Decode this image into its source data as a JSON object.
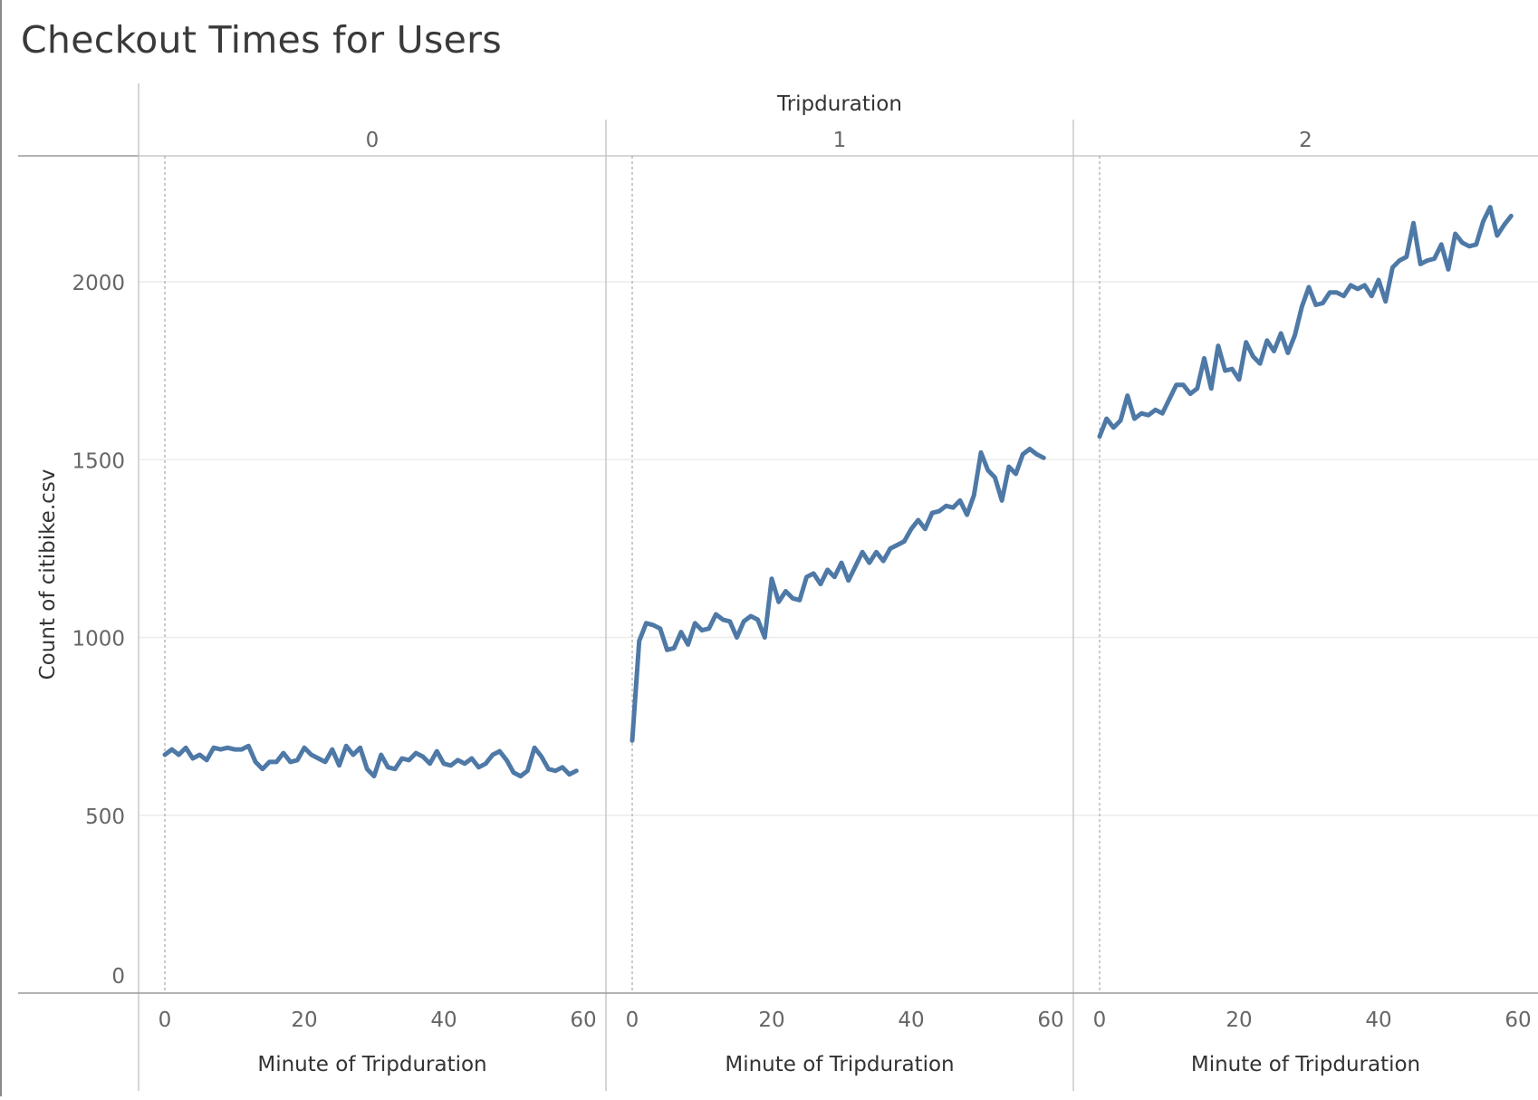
{
  "title": "Checkout Times for Users",
  "chart_data": {
    "type": "line",
    "title": "Checkout Times for Users",
    "column_header": "Tripduration",
    "xlabel": "Minute of Tripduration",
    "ylabel": "Count of citibike.csv",
    "ylim": [
      0,
      2300
    ],
    "yticks": [
      0,
      500,
      1000,
      1500,
      2000
    ],
    "xlim": [
      -4,
      63
    ],
    "xticks": [
      0,
      20,
      40,
      60
    ],
    "grid": true,
    "line_color": "#4e79a7",
    "panels": [
      {
        "label": "0",
        "x": [
          0,
          1,
          2,
          3,
          4,
          5,
          6,
          7,
          8,
          9,
          10,
          11,
          12,
          13,
          14,
          15,
          16,
          17,
          18,
          19,
          20,
          21,
          22,
          23,
          24,
          25,
          26,
          27,
          28,
          29,
          30,
          31,
          32,
          33,
          34,
          35,
          36,
          37,
          38,
          39,
          40,
          41,
          42,
          43,
          44,
          45,
          46,
          47,
          48,
          49,
          50,
          51,
          52,
          53,
          54,
          55,
          56,
          57,
          58,
          59
        ],
        "values": [
          670,
          685,
          670,
          690,
          660,
          670,
          655,
          690,
          685,
          690,
          685,
          685,
          695,
          650,
          630,
          650,
          650,
          675,
          650,
          655,
          690,
          670,
          660,
          650,
          685,
          640,
          695,
          670,
          690,
          630,
          610,
          670,
          635,
          630,
          660,
          655,
          675,
          665,
          645,
          680,
          645,
          640,
          655,
          645,
          660,
          635,
          645,
          670,
          680,
          655,
          620,
          610,
          625,
          690,
          665,
          630,
          625,
          635,
          615,
          625
        ]
      },
      {
        "label": "1",
        "x": [
          0,
          1,
          2,
          3,
          4,
          5,
          6,
          7,
          8,
          9,
          10,
          11,
          12,
          13,
          14,
          15,
          16,
          17,
          18,
          19,
          20,
          21,
          22,
          23,
          24,
          25,
          26,
          27,
          28,
          29,
          30,
          31,
          32,
          33,
          34,
          35,
          36,
          37,
          38,
          39,
          40,
          41,
          42,
          43,
          44,
          45,
          46,
          47,
          48,
          49,
          50,
          51,
          52,
          53,
          54,
          55,
          56,
          57,
          58,
          59
        ],
        "values": [
          710,
          990,
          1040,
          1035,
          1025,
          965,
          970,
          1015,
          980,
          1040,
          1020,
          1025,
          1065,
          1050,
          1045,
          1000,
          1045,
          1060,
          1050,
          1000,
          1165,
          1100,
          1130,
          1110,
          1105,
          1170,
          1180,
          1150,
          1190,
          1170,
          1210,
          1160,
          1200,
          1240,
          1210,
          1240,
          1215,
          1250,
          1260,
          1270,
          1305,
          1330,
          1305,
          1350,
          1355,
          1370,
          1365,
          1385,
          1345,
          1400,
          1520,
          1470,
          1450,
          1385,
          1480,
          1460,
          1515,
          1530,
          1515,
          1505
        ]
      },
      {
        "label": "2",
        "x": [
          0,
          1,
          2,
          3,
          4,
          5,
          6,
          7,
          8,
          9,
          10,
          11,
          12,
          13,
          14,
          15,
          16,
          17,
          18,
          19,
          20,
          21,
          22,
          23,
          24,
          25,
          26,
          27,
          28,
          29,
          30,
          31,
          32,
          33,
          34,
          35,
          36,
          37,
          38,
          39,
          40,
          41,
          42,
          43,
          44,
          45,
          46,
          47,
          48,
          49,
          50,
          51,
          52,
          53,
          54,
          55,
          56,
          57,
          58,
          59
        ],
        "values": [
          1565,
          1615,
          1590,
          1610,
          1680,
          1615,
          1630,
          1625,
          1640,
          1630,
          1670,
          1710,
          1710,
          1685,
          1700,
          1785,
          1700,
          1820,
          1750,
          1755,
          1725,
          1830,
          1790,
          1770,
          1835,
          1805,
          1855,
          1800,
          1850,
          1930,
          1985,
          1935,
          1940,
          1970,
          1970,
          1960,
          1990,
          1980,
          1990,
          1960,
          2005,
          1945,
          2040,
          2060,
          2070,
          2165,
          2050,
          2060,
          2065,
          2105,
          2035,
          2135,
          2110,
          2100,
          2105,
          2170,
          2210,
          2130,
          2160,
          2185
        ]
      }
    ]
  }
}
